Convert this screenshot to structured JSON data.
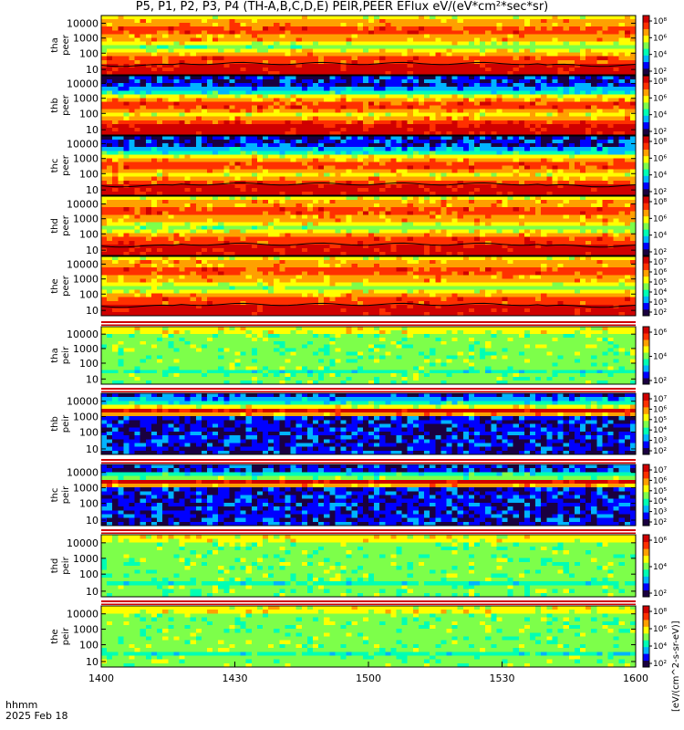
{
  "title": "P5, P1, P2, P3, P4 (TH-A,B,C,D,E) PEIR,PEER EFlux eV/(eV*cm²*sec*sr)",
  "footer": {
    "time_label": "hhmm",
    "date_label": "2025 Feb 18"
  },
  "colorbar_side_label": "[eV/(cm^2-s-sr-eV)]",
  "chart_data": {
    "type": "heatmap",
    "x_ticks": [
      "1400",
      "1430",
      "1500",
      "1530",
      "1600"
    ],
    "x_range": [
      "14:00",
      "16:00"
    ],
    "y_scale": "log",
    "y_ticks": [
      "10",
      "100",
      "1000",
      "10000"
    ],
    "panels": [
      {
        "id": "tha-peer",
        "label_top": "tha",
        "label_bottom": "peer",
        "colorbar_ticks": [
          "10²",
          "10⁴",
          "10⁶",
          "10⁸"
        ],
        "boundary_line": true
      },
      {
        "id": "thb-peer",
        "label_top": "thb",
        "label_bottom": "peer",
        "colorbar_ticks": [
          "10²",
          "10⁴",
          "10⁶",
          "10⁸"
        ],
        "boundary_line": false
      },
      {
        "id": "thc-peer",
        "label_top": "thc",
        "label_bottom": "peer",
        "colorbar_ticks": [
          "10²",
          "10⁴",
          "10⁶",
          "10⁸"
        ],
        "boundary_line": true
      },
      {
        "id": "thd-peer",
        "label_top": "thd",
        "label_bottom": "peer",
        "colorbar_ticks": [
          "10²",
          "10⁴",
          "10⁶",
          "10⁸"
        ],
        "boundary_line": true
      },
      {
        "id": "the-peer",
        "label_top": "the",
        "label_bottom": "peer",
        "colorbar_ticks": [
          "10²",
          "10³",
          "10⁴",
          "10⁵",
          "10⁶",
          "10⁷"
        ],
        "boundary_line": true
      },
      {
        "id": "tha-peir",
        "label_top": "tha",
        "label_bottom": "peir",
        "colorbar_ticks": [
          "10²",
          "10⁴",
          "10⁶"
        ],
        "boundary_line": false
      },
      {
        "id": "thb-peir",
        "label_top": "thb",
        "label_bottom": "peir",
        "colorbar_ticks": [
          "10²",
          "10³",
          "10⁴",
          "10⁵",
          "10⁶",
          "10⁷"
        ],
        "boundary_line": false
      },
      {
        "id": "thc-peir",
        "label_top": "thc",
        "label_bottom": "peir",
        "colorbar_ticks": [
          "10²",
          "10³",
          "10⁴",
          "10⁵",
          "10⁶",
          "10⁷"
        ],
        "boundary_line": false
      },
      {
        "id": "thd-peir",
        "label_top": "thd",
        "label_bottom": "peir",
        "colorbar_ticks": [
          "10²",
          "10⁴",
          "10⁶"
        ],
        "boundary_line": false
      },
      {
        "id": "the-peir",
        "label_top": "the",
        "label_bottom": "peir",
        "colorbar_ticks": [
          "10²",
          "10⁴",
          "10⁶",
          "10⁸"
        ],
        "boundary_line": false
      }
    ],
    "colormap": [
      "#1a0040",
      "#0000ff",
      "#00b4ff",
      "#00ffb4",
      "#7dff4a",
      "#ffff00",
      "#ffa000",
      "#ff3000",
      "#d00000"
    ]
  }
}
